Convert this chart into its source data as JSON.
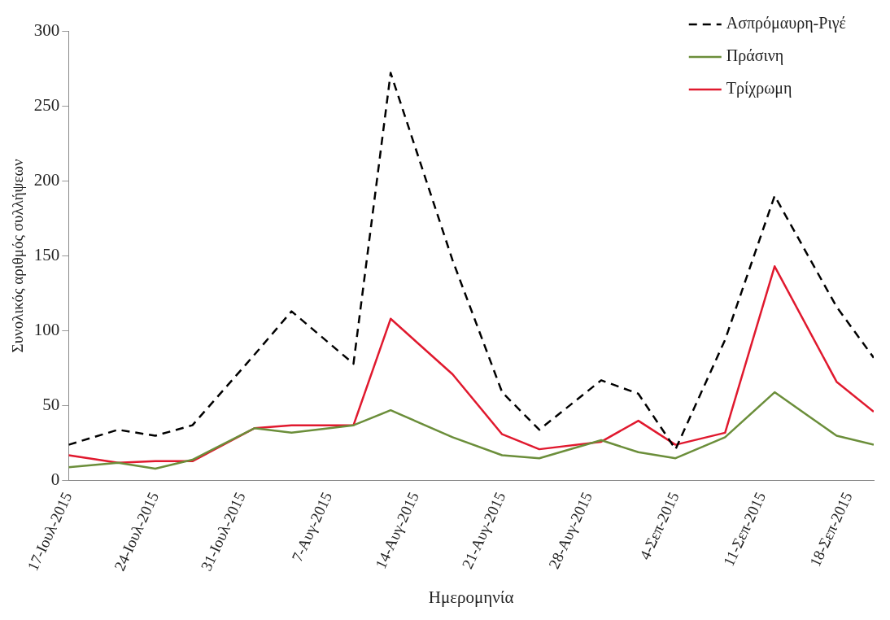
{
  "chart_data": {
    "type": "line",
    "xlabel": "Ημερομηνία",
    "ylabel": "Συνολικός αριθμός συλλήψεων",
    "x": [
      "2015-07-17",
      "2015-07-21",
      "2015-07-24",
      "2015-07-27",
      "2015-08-01",
      "2015-08-04",
      "2015-08-09",
      "2015-08-12",
      "2015-08-17",
      "2015-08-21",
      "2015-08-24",
      "2015-08-29",
      "2015-09-01",
      "2015-09-04",
      "2015-09-08",
      "2015-09-12",
      "2015-09-17",
      "2015-09-20"
    ],
    "series": [
      {
        "name": "Ασπρόμαυρη-Ριγέ",
        "color": "#000000",
        "line_style": "dashed",
        "values": [
          24,
          34,
          30,
          37,
          84,
          113,
          78,
          272,
          147,
          59,
          34,
          67,
          58,
          21,
          94,
          190,
          116,
          82
        ]
      },
      {
        "name": "Πράσινη",
        "color": "#6b8e3a",
        "line_style": "solid",
        "values": [
          9,
          12,
          8,
          14,
          35,
          32,
          37,
          47,
          29,
          17,
          15,
          27,
          19,
          15,
          29,
          59,
          30,
          24
        ]
      },
      {
        "name": "Τρίχρωμη",
        "color": "#e0192e",
        "line_style": "solid",
        "values": [
          17,
          12,
          13,
          13,
          35,
          37,
          37,
          108,
          71,
          31,
          21,
          26,
          40,
          24,
          32,
          143,
          66,
          46
        ]
      }
    ],
    "xlim": [
      "2015-07-17",
      "2015-09-20"
    ],
    "xticks": [
      {
        "value": "2015-07-17",
        "label": "17-Ιουλ-2015"
      },
      {
        "value": "2015-07-24",
        "label": "24-Ιουλ-2015"
      },
      {
        "value": "2015-07-31",
        "label": "31-Ιουλ-2015"
      },
      {
        "value": "2015-08-07",
        "label": "7-Αυγ-2015"
      },
      {
        "value": "2015-08-14",
        "label": "14-Αυγ-2015"
      },
      {
        "value": "2015-08-21",
        "label": "21-Αυγ-2015"
      },
      {
        "value": "2015-08-28",
        "label": "28-Αυγ-2015"
      },
      {
        "value": "2015-09-04",
        "label": "4-Σεπ-2015"
      },
      {
        "value": "2015-09-11",
        "label": "11-Σεπ-2015"
      },
      {
        "value": "2015-09-18",
        "label": "18-Σεπ-2015"
      }
    ],
    "ylim": [
      0,
      300
    ],
    "yticks": [
      0,
      50,
      100,
      150,
      200,
      250,
      300
    ],
    "grid": false,
    "legend": "top right",
    "marker": "none"
  }
}
